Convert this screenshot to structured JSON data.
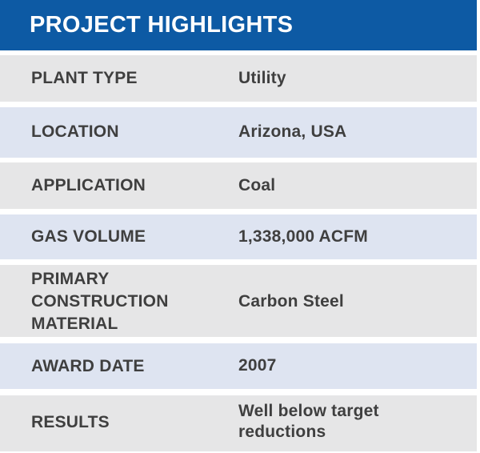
{
  "header": {
    "title": "PROJECT HIGHLIGHTS"
  },
  "rows": [
    {
      "label": "PLANT TYPE",
      "value": "Utility"
    },
    {
      "label": "LOCATION",
      "value": "Arizona, USA"
    },
    {
      "label": "APPLICATION",
      "value": "Coal"
    },
    {
      "label": "GAS VOLUME",
      "value": "1,338,000 ACFM"
    },
    {
      "label_lines": [
        "PRIMARY",
        "CONSTRUCTION",
        "MATERIAL"
      ],
      "value": "Carbon Steel"
    },
    {
      "label": "AWARD DATE",
      "value": "2007"
    },
    {
      "label": "RESULTS",
      "value_lines": [
        "Well below target",
        "reductions"
      ]
    }
  ],
  "colors": {
    "header": "#0d5aa4",
    "row_gray": "#e6e6e7",
    "row_blue": "#dee4f1",
    "text": "#3f3f3f"
  }
}
